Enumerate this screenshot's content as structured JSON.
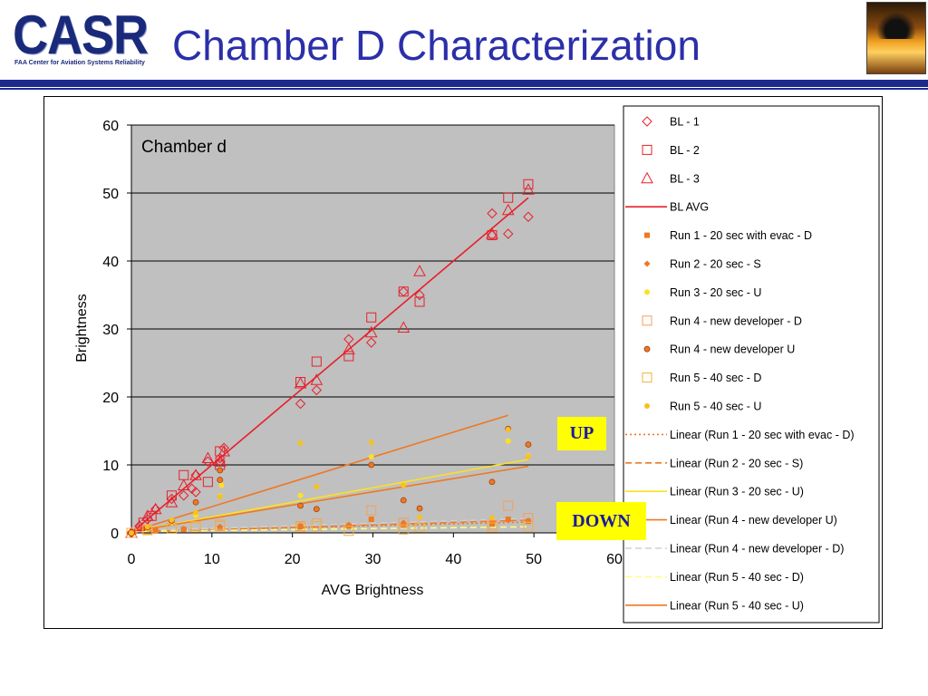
{
  "header": {
    "logo_text": "CASR",
    "logo_subtitle": "FAA Center for Aviation Systems Reliability",
    "title": "Chamber D Characterization"
  },
  "annotations": {
    "up": "UP",
    "down": "DOWN"
  },
  "colors": {
    "title": "#2b2fa8",
    "header_bar": "#1c2a8c",
    "plot_bg": "#c0c0c0",
    "bl": "#e8202a",
    "orange": "#f07820",
    "yellow": "#ffe020",
    "light_orange": "#f0a060",
    "annotation_bg": "#ffff00",
    "annotation_text": "#1a1aa0"
  },
  "chart_data": {
    "type": "scatter",
    "title": "",
    "inner_label": "Chamber d",
    "xlabel": "AVG Brightness",
    "ylabel": "Brightness",
    "xlim": [
      0,
      60
    ],
    "ylim": [
      0,
      60
    ],
    "xticks": [
      "0",
      "10",
      "20",
      "30",
      "40",
      "50",
      "60"
    ],
    "yticks": [
      "0",
      "10",
      "20",
      "30",
      "40",
      "50",
      "60"
    ],
    "grid": true,
    "legend_position": "right",
    "series": [
      {
        "name": "BL - 1",
        "marker": "diamond",
        "color": "#e8202a",
        "points": [
          [
            0,
            0
          ],
          [
            1,
            1
          ],
          [
            2,
            2
          ],
          [
            3,
            3.5
          ],
          [
            5,
            5
          ],
          [
            6.5,
            5.5
          ],
          [
            7.5,
            6.5
          ],
          [
            8,
            6
          ],
          [
            8,
            8.5
          ],
          [
            9.5,
            10.5
          ],
          [
            11,
            11
          ],
          [
            11.5,
            12.5
          ],
          [
            11,
            10.5
          ],
          [
            21,
            19
          ],
          [
            23,
            21
          ],
          [
            27,
            28.5
          ],
          [
            29.8,
            28
          ],
          [
            33.8,
            35.5
          ],
          [
            35.8,
            35
          ],
          [
            44.8,
            47
          ],
          [
            46.8,
            44
          ],
          [
            49.3,
            46.5
          ],
          [
            44.8,
            43.8
          ]
        ]
      },
      {
        "name": "BL - 2",
        "marker": "square",
        "color": "#e8202a",
        "points": [
          [
            0,
            0
          ],
          [
            1.5,
            1.5
          ],
          [
            2.5,
            2.5
          ],
          [
            5,
            5.5
          ],
          [
            6.5,
            8.5
          ],
          [
            9.5,
            7.5
          ],
          [
            11,
            10
          ],
          [
            11,
            12
          ],
          [
            21,
            22.2
          ],
          [
            23,
            25.2
          ],
          [
            27,
            26
          ],
          [
            29.8,
            31.7
          ],
          [
            33.8,
            35.5
          ],
          [
            35.8,
            34
          ],
          [
            44.8,
            43.8
          ],
          [
            46.8,
            49.3
          ],
          [
            49.3,
            51.3
          ]
        ]
      },
      {
        "name": "BL - 3",
        "marker": "triangle",
        "color": "#e8202a",
        "points": [
          [
            0,
            0
          ],
          [
            1,
            1
          ],
          [
            2,
            2.5
          ],
          [
            3,
            3.5
          ],
          [
            5,
            4.5
          ],
          [
            6.5,
            7
          ],
          [
            8,
            8.5
          ],
          [
            9.5,
            11
          ],
          [
            11,
            10.5
          ],
          [
            11.5,
            12
          ],
          [
            21,
            22
          ],
          [
            23,
            22.5
          ],
          [
            27,
            27
          ],
          [
            29.8,
            29.5
          ],
          [
            33.8,
            30.2
          ],
          [
            35.8,
            38.5
          ],
          [
            44.8,
            44
          ],
          [
            46.8,
            47.5
          ],
          [
            49.3,
            50.5
          ]
        ]
      },
      {
        "name": "BL AVG",
        "marker": "line",
        "color": "#e8202a",
        "fit": [
          [
            0,
            0
          ],
          [
            49.3,
            49.3
          ]
        ]
      },
      {
        "name": "Run 1 - 20 sec with evac - D",
        "marker": "smallsquare",
        "color": "#f07820",
        "points": [
          [
            0,
            0
          ],
          [
            3,
            0.3
          ],
          [
            6.5,
            0.5
          ],
          [
            11,
            0.7
          ],
          [
            21,
            0.9
          ],
          [
            27,
            1
          ],
          [
            29.8,
            2
          ],
          [
            33.8,
            1.1
          ],
          [
            44.8,
            1.3
          ],
          [
            46.8,
            2
          ],
          [
            49.3,
            1.7
          ]
        ]
      },
      {
        "name": "Run 2 - 20 sec - S",
        "marker": "smalldiamond",
        "color": "#f07820",
        "points": [
          [
            0,
            0
          ],
          [
            3,
            0.4
          ],
          [
            6.5,
            0.6
          ],
          [
            11,
            0.9
          ],
          [
            21,
            1.1
          ],
          [
            27,
            1.2
          ],
          [
            33.8,
            1.5
          ],
          [
            44.8,
            1.6
          ],
          [
            49.3,
            1.8
          ]
        ]
      },
      {
        "name": "Run 3 - 20 sec - U",
        "marker": "dot",
        "color": "#ffe020",
        "points": [
          [
            0,
            0
          ],
          [
            2,
            0.6
          ],
          [
            5,
            1.5
          ],
          [
            8,
            2.6
          ],
          [
            11,
            5.4
          ],
          [
            11.2,
            7
          ],
          [
            21,
            5.5
          ],
          [
            23,
            6.8
          ],
          [
            29.8,
            11.2
          ],
          [
            33.8,
            7.2
          ],
          [
            44.8,
            7.5
          ],
          [
            46.8,
            13.5
          ],
          [
            49.3,
            11.3
          ]
        ]
      },
      {
        "name": "Run 4 - new developer - D",
        "marker": "square",
        "color": "#f0a060",
        "points": [
          [
            0,
            0
          ],
          [
            2,
            0.5
          ],
          [
            5,
            0.8
          ],
          [
            8,
            1
          ],
          [
            11,
            1.2
          ],
          [
            21,
            1
          ],
          [
            23,
            1.4
          ],
          [
            29.8,
            3.3
          ],
          [
            33.8,
            1.5
          ],
          [
            44.8,
            1.2
          ],
          [
            46.8,
            4
          ],
          [
            49.3,
            2.2
          ]
        ]
      },
      {
        "name": "Run 4 - new developer U",
        "marker": "circle",
        "color": "#f07820",
        "points": [
          [
            0,
            0
          ],
          [
            2,
            0.8
          ],
          [
            5,
            1.8
          ],
          [
            8,
            4.5
          ],
          [
            11,
            7.8
          ],
          [
            11,
            9.2
          ],
          [
            21,
            4
          ],
          [
            23,
            3.5
          ],
          [
            29.8,
            10
          ],
          [
            33.8,
            4.8
          ],
          [
            35.8,
            3.6
          ],
          [
            44.8,
            7.5
          ],
          [
            46.8,
            15.3
          ],
          [
            49.3,
            13
          ]
        ]
      },
      {
        "name": "Run 5 - 40 sec - D",
        "marker": "square",
        "color": "#f0b040",
        "points": [
          [
            0,
            0
          ],
          [
            2,
            0.4
          ],
          [
            5,
            0.6
          ],
          [
            8,
            0.8
          ],
          [
            11,
            1
          ],
          [
            21,
            0.8
          ],
          [
            23,
            1
          ],
          [
            27,
            0.3
          ],
          [
            33.8,
            0.5
          ],
          [
            35.8,
            0.8
          ],
          [
            44.8,
            0.8
          ],
          [
            49.3,
            0.9
          ]
        ]
      },
      {
        "name": "Run 5 - 40 sec - U",
        "marker": "dot",
        "color": "#f8c020",
        "points": [
          [
            0,
            0
          ],
          [
            2,
            0.9
          ],
          [
            5,
            1.9
          ],
          [
            8,
            3
          ],
          [
            11,
            5.3
          ],
          [
            21,
            13.2
          ],
          [
            23,
            6.8
          ],
          [
            29.8,
            13.3
          ],
          [
            33.8,
            7
          ],
          [
            35.8,
            2.3
          ],
          [
            44.8,
            2.2
          ],
          [
            46.8,
            15.2
          ],
          [
            49.3,
            11.2
          ]
        ]
      },
      {
        "name": "Linear (Run 1 - 20 sec with evac - D)",
        "marker": "dotted",
        "color": "#f07820",
        "fit": [
          [
            0,
            0.2
          ],
          [
            49.3,
            1.6
          ]
        ]
      },
      {
        "name": "Linear (Run 2 - 20 sec - S)",
        "marker": "dashed",
        "color": "#f07820",
        "fit": [
          [
            0,
            0.1
          ],
          [
            49.3,
            1.9
          ]
        ]
      },
      {
        "name": "Linear (Run 3 - 20 sec - U)",
        "marker": "solid",
        "color": "#ffe020",
        "fit": [
          [
            0,
            0.2
          ],
          [
            49.3,
            10.8
          ]
        ]
      },
      {
        "name": "Linear (Run 4 - new developer U)",
        "marker": "solid",
        "color": "#f07820",
        "fit": [
          [
            0,
            0.2
          ],
          [
            46.8,
            17.3
          ]
        ]
      },
      {
        "name": "Linear (Run 4 - new developer - D)",
        "marker": "dashed",
        "color": "#d0d0d0",
        "fit": [
          [
            0,
            0.3
          ],
          [
            49.3,
            2.1
          ]
        ]
      },
      {
        "name": "Linear (Run 5 - 40 sec - D)",
        "marker": "dashed",
        "color": "#ffff80",
        "fit": [
          [
            0,
            0.2
          ],
          [
            49.3,
            0.9
          ]
        ]
      },
      {
        "name": "Linear (Run 5 - 40 sec - U)",
        "marker": "solid",
        "color": "#f07820",
        "fit": [
          [
            0,
            0.2
          ],
          [
            49.3,
            9.8
          ]
        ]
      }
    ]
  }
}
